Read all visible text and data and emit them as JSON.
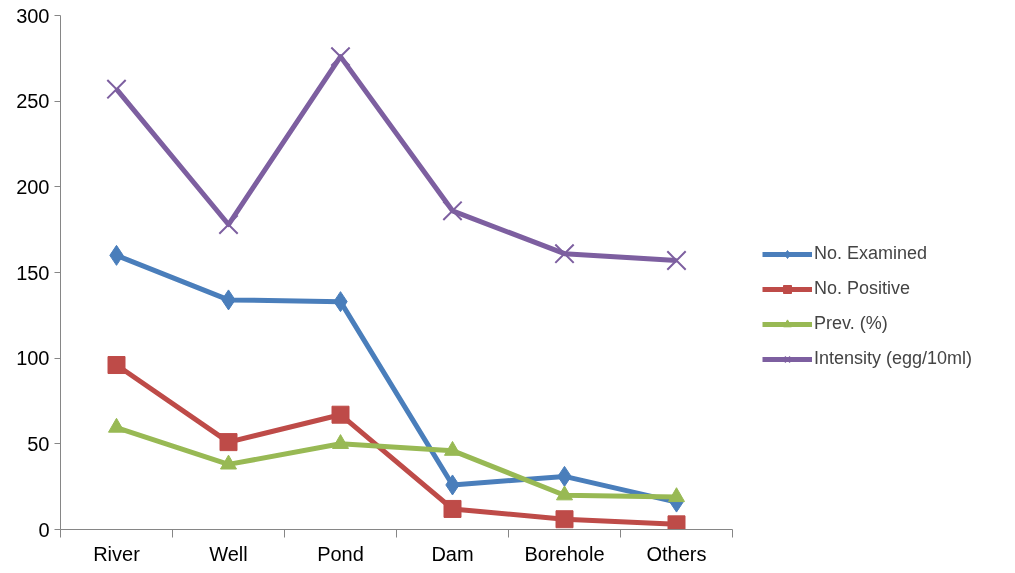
{
  "chart_data": {
    "type": "line",
    "categories": [
      "River",
      "Well",
      "Pond",
      "Dam",
      "Borehole",
      "Others"
    ],
    "series": [
      {
        "name": "No. Examined",
        "color": "#4a7ebb",
        "marker": "diamond",
        "values": [
          160,
          134,
          133,
          26,
          31,
          16
        ]
      },
      {
        "name": "No. Positive",
        "color": "#be4b48",
        "marker": "square",
        "values": [
          96,
          51,
          67,
          12,
          6,
          3
        ]
      },
      {
        "name": "Prev. (%)",
        "color": "#98b954",
        "marker": "triangle",
        "values": [
          59.5,
          38,
          50,
          46,
          20,
          19
        ]
      },
      {
        "name": "Intensity (egg/10ml)",
        "color": "#7d5fa0",
        "marker": "cross",
        "values": [
          257,
          178,
          276,
          186,
          161,
          157
        ]
      }
    ],
    "ylim": [
      0,
      300
    ],
    "yticks": [
      0,
      50,
      100,
      150,
      200,
      250,
      300
    ],
    "grid": false,
    "legend": "right"
  }
}
